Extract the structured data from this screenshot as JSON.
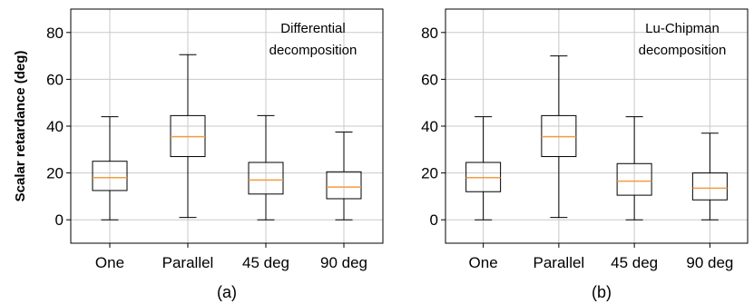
{
  "chart_data": [
    {
      "type": "box",
      "panel_label": "(a)",
      "annotation": [
        "Differential",
        "decomposition"
      ],
      "ylabel": "Scalar retardance (deg)",
      "ylim": [
        -10,
        90
      ],
      "yticks": [
        0,
        20,
        40,
        60,
        80
      ],
      "grid": true,
      "categories": [
        "One",
        "Parallel",
        "45 deg",
        "90 deg"
      ],
      "boxes": [
        {
          "whislo": 0,
          "q1": 12.5,
          "med": 18,
          "q3": 25,
          "whishi": 44
        },
        {
          "whislo": 1,
          "q1": 27,
          "med": 35.5,
          "q3": 44.5,
          "whishi": 70.5
        },
        {
          "whislo": 0,
          "q1": 11,
          "med": 17,
          "q3": 24.5,
          "whishi": 44.5
        },
        {
          "whislo": 0,
          "q1": 9,
          "med": 14,
          "q3": 20.5,
          "whishi": 37.5
        }
      ]
    },
    {
      "type": "box",
      "panel_label": "(b)",
      "annotation": [
        "Lu-Chipman",
        "decomposition"
      ],
      "ylabel": "",
      "ylim": [
        -10,
        90
      ],
      "yticks": [
        0,
        20,
        40,
        60,
        80
      ],
      "grid": true,
      "categories": [
        "One",
        "Parallel",
        "45 deg",
        "90 deg"
      ],
      "boxes": [
        {
          "whislo": 0,
          "q1": 12,
          "med": 18,
          "q3": 24.5,
          "whishi": 44
        },
        {
          "whislo": 1,
          "q1": 27,
          "med": 35.5,
          "q3": 44.5,
          "whishi": 70
        },
        {
          "whislo": 0,
          "q1": 10.5,
          "med": 16.5,
          "q3": 24,
          "whishi": 44
        },
        {
          "whislo": 0,
          "q1": 8.5,
          "med": 13.5,
          "q3": 20,
          "whishi": 37
        }
      ]
    }
  ]
}
